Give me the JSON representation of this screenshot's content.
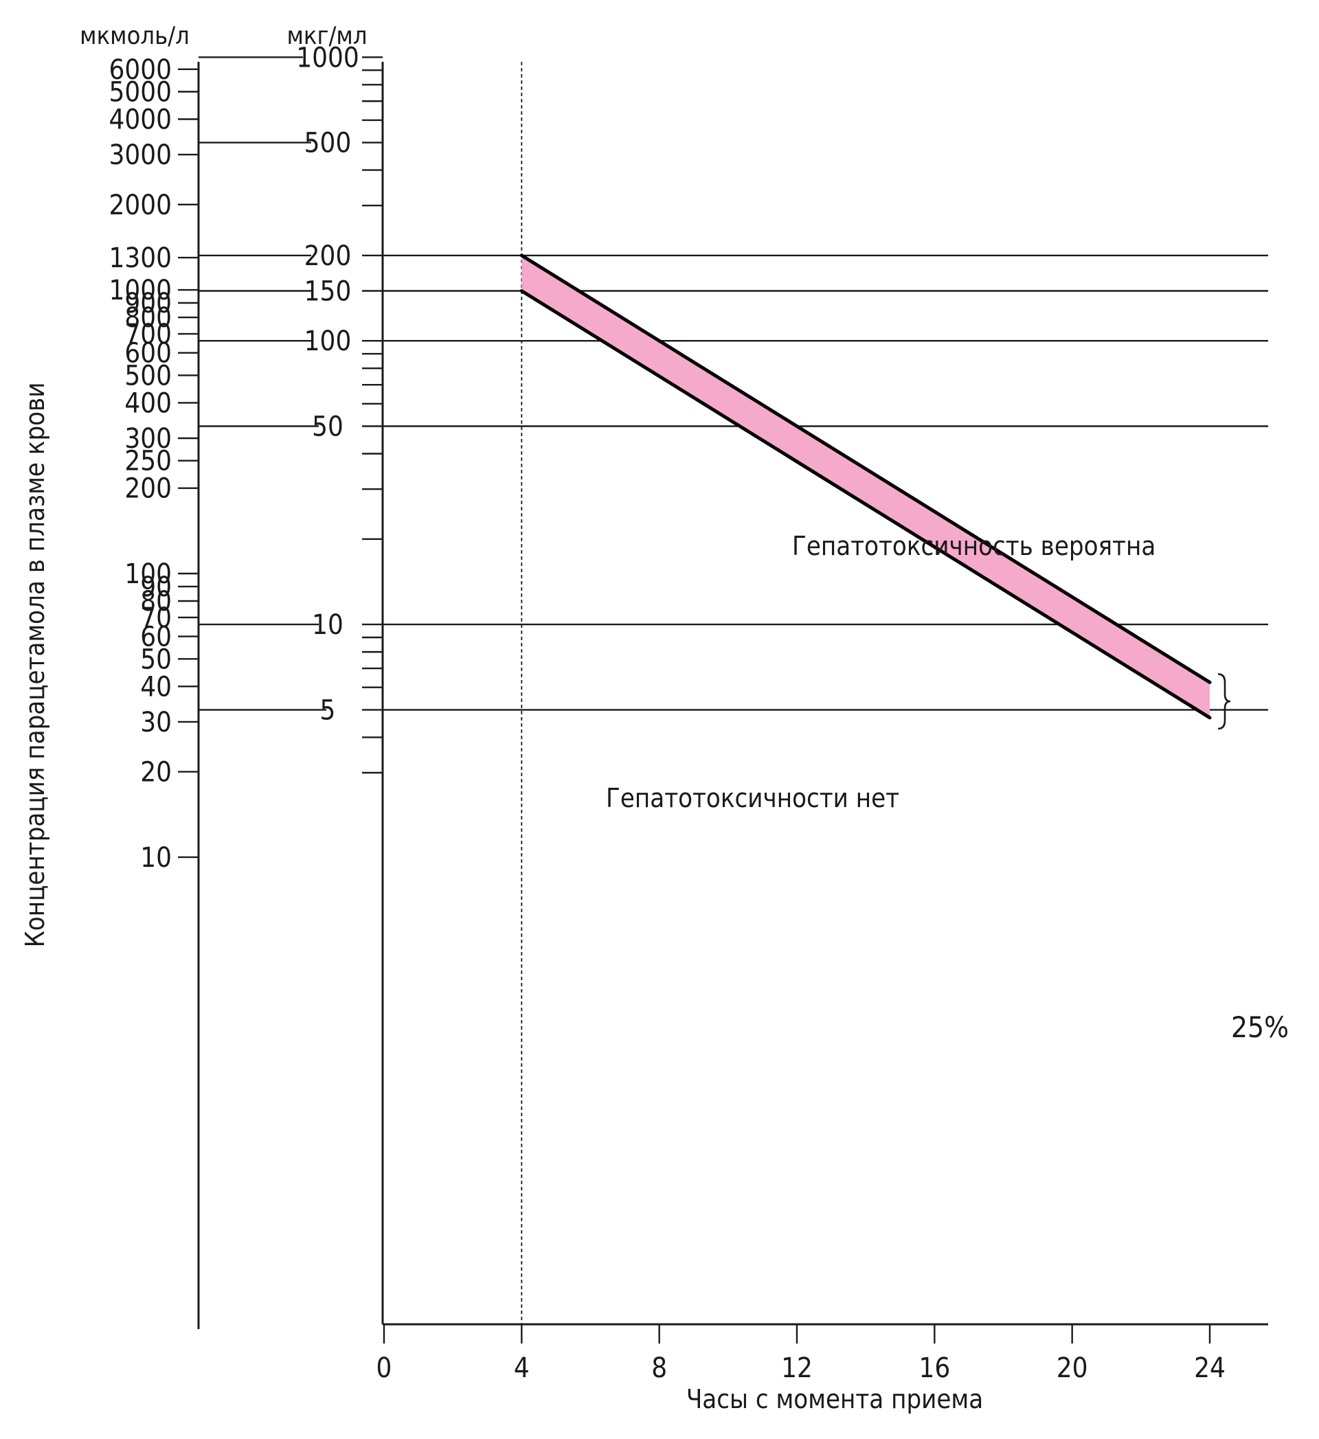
{
  "chart_data": {
    "type": "line",
    "xlabel": "Часы с момента приема",
    "ylabel": "Концентрация парацетамола в плазме крови",
    "x_ticks": [
      0,
      4,
      8,
      12,
      16,
      20,
      24
    ],
    "x_range": [
      0,
      25.5
    ],
    "y_scale": "log",
    "left_axis": {
      "unit": "мкмоль/л",
      "tick_labels": [
        "6000",
        "5000",
        "4000",
        "3000",
        "2000",
        "1300",
        "1000",
        "900",
        "800",
        "700",
        "600",
        "500",
        "400",
        "300",
        "250",
        "200",
        "100",
        "90",
        "80",
        "70",
        "60",
        "50",
        "40",
        "30",
        "20",
        "10"
      ]
    },
    "right_axis": {
      "unit": "мкг/мл",
      "tick_labels": [
        "1000",
        "500",
        "200",
        "150",
        "100",
        "50",
        "10",
        "5"
      ],
      "range": [
        2.6,
        1000
      ]
    },
    "reference_lines_ugml": [
      200,
      150,
      100,
      50,
      10,
      5
    ],
    "dashed_x": 4,
    "series": [
      {
        "x": [
          4,
          24
        ],
        "y": [
          200,
          6.25
        ]
      },
      {
        "x": [
          4,
          24
        ],
        "y": [
          150,
          4.69
        ]
      }
    ],
    "annotations": {
      "above": "Гепатотоксичность вероятна",
      "below": "Гепатотоксичности нет",
      "band": "25%"
    }
  }
}
